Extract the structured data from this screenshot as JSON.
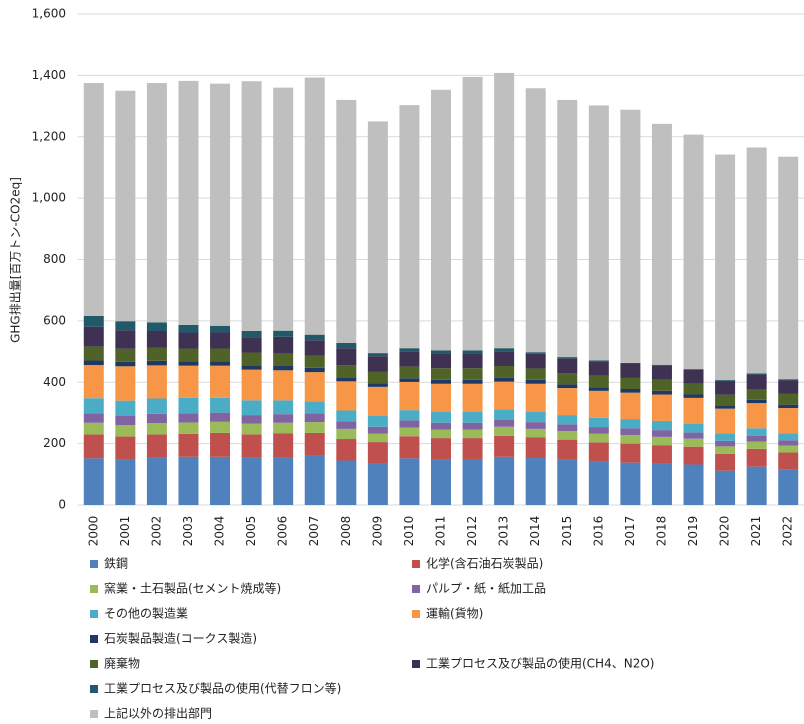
{
  "chart_data": {
    "type": "stacked_bar",
    "y_label": "GHG排出量[百万トン-CO2eq]",
    "categories": [
      "2000",
      "2001",
      "2002",
      "2003",
      "2004",
      "2005",
      "2006",
      "2007",
      "2008",
      "2009",
      "2010",
      "2011",
      "2012",
      "2013",
      "2014",
      "2015",
      "2016",
      "2017",
      "2018",
      "2019",
      "2020",
      "2021",
      "2022"
    ],
    "ylim": [
      0,
      1600
    ],
    "yticks": [
      0,
      200,
      400,
      600,
      800,
      {
        "value": 1000,
        "label": "1,000"
      },
      {
        "value": 1200,
        "label": "1,200"
      },
      {
        "value": 1400,
        "label": "1,400"
      },
      {
        "value": 1600,
        "label": "1,600"
      }
    ],
    "grid": true,
    "series": [
      {
        "name": "鉄鋼",
        "color": "#4f81bd",
        "values": [
          152,
          148,
          155,
          157,
          157,
          155,
          155,
          160,
          145,
          135,
          152,
          148,
          150,
          157,
          153,
          147,
          142,
          138,
          135,
          132,
          112,
          125,
          115
        ]
      },
      {
        "name": "化学(含石油石炭製品)",
        "color": "#c0504d",
        "values": [
          78,
          75,
          75,
          75,
          78,
          75,
          78,
          75,
          70,
          70,
          72,
          70,
          68,
          68,
          67,
          66,
          62,
          62,
          60,
          58,
          55,
          58,
          56
        ]
      },
      {
        "name": "窯業・土石製品(セメント焼成等)",
        "color": "#9bbb59",
        "values": [
          38,
          37,
          37,
          37,
          36,
          35,
          35,
          35,
          33,
          28,
          28,
          28,
          28,
          30,
          28,
          28,
          28,
          28,
          27,
          26,
          24,
          24,
          23
        ]
      },
      {
        "name": "パルプ・紙・紙加工品",
        "color": "#8064a2",
        "values": [
          30,
          30,
          30,
          30,
          30,
          28,
          28,
          28,
          25,
          22,
          24,
          22,
          22,
          22,
          22,
          22,
          22,
          22,
          22,
          20,
          18,
          18,
          17
        ]
      },
      {
        "name": "その他の製造業",
        "color": "#4bacc6",
        "values": [
          50,
          50,
          50,
          50,
          48,
          48,
          45,
          40,
          35,
          35,
          33,
          35,
          35,
          35,
          33,
          30,
          30,
          30,
          30,
          28,
          25,
          25,
          23
        ]
      },
      {
        "name": "運輸(貨物)",
        "color": "#f79646",
        "values": [
          108,
          112,
          108,
          105,
          105,
          100,
          98,
          95,
          95,
          95,
          92,
          92,
          92,
          90,
          92,
          88,
          88,
          86,
          86,
          85,
          80,
          82,
          82
        ]
      },
      {
        "name": "石炭製品製造(コークス製造)",
        "color": "#1f3864",
        "values": [
          15,
          15,
          15,
          14,
          14,
          14,
          14,
          14,
          13,
          12,
          12,
          13,
          13,
          13,
          13,
          12,
          12,
          12,
          12,
          11,
          10,
          11,
          11
        ]
      },
      {
        "name": "廃棄物",
        "color": "#4f6228",
        "values": [
          45,
          42,
          42,
          42,
          42,
          42,
          40,
          40,
          40,
          38,
          38,
          38,
          38,
          38,
          37,
          37,
          37,
          36,
          36,
          35,
          35,
          35,
          35
        ]
      },
      {
        "name": "工業プロセス及び製品の使用(CH4、N2O)",
        "color": "#3f3151",
        "values": [
          65,
          60,
          55,
          52,
          52,
          50,
          55,
          50,
          55,
          50,
          50,
          48,
          48,
          48,
          48,
          47,
          47,
          47,
          47,
          46,
          45,
          47,
          45
        ]
      },
      {
        "name": "工業プロセス及び製品の使用(代替フロン等)",
        "color": "#215968",
        "values": [
          35,
          30,
          28,
          25,
          22,
          20,
          20,
          18,
          17,
          10,
          10,
          10,
          10,
          10,
          5,
          5,
          3,
          2,
          2,
          2,
          3,
          4,
          3
        ]
      },
      {
        "name": "上記以外の排出部門",
        "color": "#bfbfbf",
        "values": [
          759,
          751,
          780,
          795,
          789,
          814,
          792,
          838,
          792,
          755,
          792,
          849,
          891,
          897,
          860,
          838,
          831,
          825,
          785,
          764,
          735,
          736,
          725
        ]
      }
    ]
  }
}
